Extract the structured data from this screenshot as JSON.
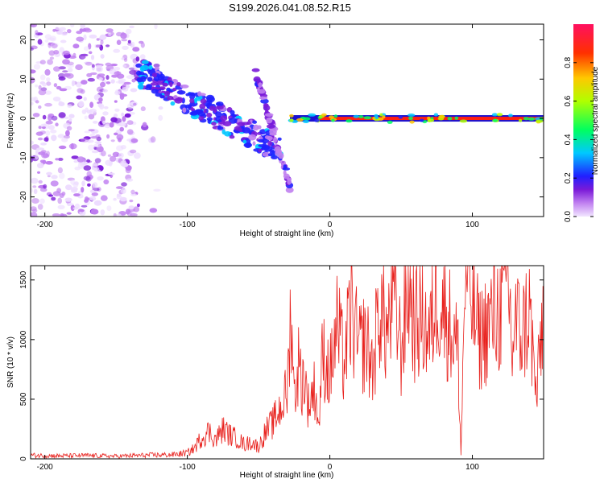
{
  "figure_title": "S199.2026.041.08.52.R15",
  "chart_data": [
    {
      "type": "heatmap",
      "title": "S199.2026.041.08.52.R15",
      "xlabel": "Height of straight line (km)",
      "ylabel": "Frequency (Hz)",
      "xlim": [
        -210,
        150
      ],
      "ylim": [
        -25,
        24
      ],
      "x_ticks": [
        -200,
        -100,
        0,
        100
      ],
      "y_ticks": [
        -20,
        -10,
        0,
        10,
        20
      ],
      "x_tick_labels": [
        "-200",
        "-100",
        "0",
        "100"
      ],
      "y_tick_labels": [
        "-20",
        "-10",
        "0",
        "10",
        "20"
      ],
      "colorbar": {
        "label": "Normalized spectral amplitude",
        "range": [
          0,
          1
        ],
        "ticks": [
          0,
          0.2,
          0.4,
          0.6,
          0.8
        ],
        "tick_labels": [
          "0.0",
          "0.2",
          "0.4",
          "0.6",
          "0.8"
        ]
      },
      "features": [
        {
          "name": "broadband noise",
          "x_range": [
            -210,
            -135
          ],
          "freq_range": [
            -25,
            24
          ],
          "amplitude": 0.1
        },
        {
          "name": "descending trace",
          "x_start": -135,
          "x_end": -35,
          "freq_start": 12,
          "freq_end": -8,
          "amplitude": 0.3
        },
        {
          "name": "short trace",
          "x_start": -52,
          "x_end": -28,
          "freq_start": 11,
          "freq_end": -17,
          "amplitude": 0.2
        },
        {
          "name": "carrier line",
          "x_start": -28,
          "x_end": 150,
          "freq": 0,
          "amplitude": 0.9
        }
      ]
    },
    {
      "type": "line",
      "title": "",
      "xlabel": "Height of straight line (km)",
      "ylabel": "SNR (10 * v/v)",
      "xlim": [
        -210,
        150
      ],
      "ylim": [
        0,
        1620
      ],
      "x_ticks": [
        -200,
        -100,
        0,
        100
      ],
      "y_ticks": [
        0,
        500,
        1000,
        1500
      ],
      "x_tick_labels": [
        "-200",
        "-100",
        "0",
        "100"
      ],
      "y_tick_labels": [
        "0",
        "500",
        "1000",
        "1500"
      ],
      "series": [
        {
          "name": "SNR",
          "color": "#e8201c",
          "x": [
            -210,
            -190,
            -170,
            -150,
            -130,
            -110,
            -100,
            -95,
            -90,
            -85,
            -80,
            -75,
            -70,
            -65,
            -60,
            -55,
            -50,
            -45,
            -40,
            -35,
            -30,
            -27,
            -25,
            -22,
            -20,
            -18,
            -15,
            -12,
            -10,
            -8,
            -5,
            0,
            5,
            10,
            15,
            20,
            25,
            30,
            35,
            40,
            45,
            50,
            55,
            60,
            65,
            70,
            75,
            80,
            85,
            90,
            92,
            95,
            100,
            105,
            110,
            115,
            120,
            125,
            128,
            130,
            135,
            140,
            145,
            150
          ],
          "values": [
            30,
            25,
            28,
            22,
            30,
            35,
            50,
            90,
            180,
            230,
            160,
            250,
            200,
            170,
            120,
            140,
            100,
            230,
            300,
            420,
            560,
            1300,
            500,
            800,
            650,
            700,
            450,
            560,
            600,
            250,
            900,
            700,
            1100,
            800,
            1250,
            900,
            1000,
            750,
            1300,
            1050,
            1400,
            900,
            1480,
            1100,
            1200,
            1000,
            1450,
            1250,
            1100,
            900,
            30,
            1620,
            1300,
            1000,
            1100,
            1200,
            1250,
            1550,
            900,
            1150,
            1050,
            1250,
            500,
            1300
          ]
        }
      ]
    }
  ]
}
